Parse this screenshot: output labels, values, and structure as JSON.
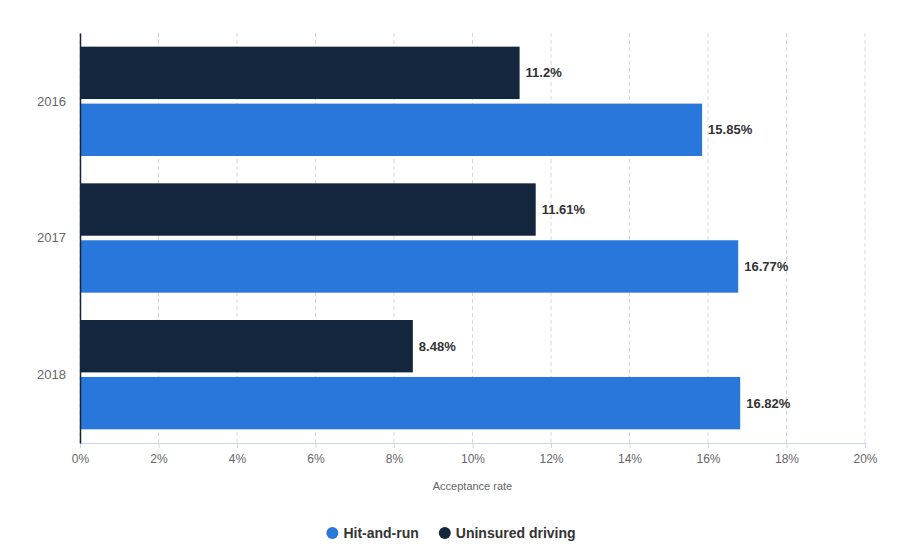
{
  "chart_data": {
    "type": "bar",
    "orientation": "horizontal",
    "categories": [
      "2016",
      "2017",
      "2018"
    ],
    "series": [
      {
        "name": "Hit-and-run",
        "color": "#2a77dc",
        "values": [
          15.85,
          16.77,
          16.82
        ],
        "value_labels": [
          "15.85%",
          "16.77%",
          "16.82%"
        ]
      },
      {
        "name": "Uninsured driving",
        "color": "#13263d",
        "values": [
          11.2,
          11.61,
          8.48
        ],
        "value_labels": [
          "11.2%",
          "11.61%",
          "8.48%"
        ]
      }
    ],
    "xlabel": "Acceptance rate",
    "xlim": [
      0,
      20
    ],
    "xticks": [
      {
        "value": 0,
        "label": "0%"
      },
      {
        "value": 2,
        "label": "2%"
      },
      {
        "value": 4,
        "label": "4%"
      },
      {
        "value": 6,
        "label": "6%"
      },
      {
        "value": 8,
        "label": "8%"
      },
      {
        "value": 10,
        "label": "10%"
      },
      {
        "value": 12,
        "label": "12%"
      },
      {
        "value": 14,
        "label": "14%"
      },
      {
        "value": 16,
        "label": "16%"
      },
      {
        "value": 18,
        "label": "18%"
      },
      {
        "value": 20,
        "label": "20%"
      }
    ],
    "grid": true,
    "data_labels": true,
    "legend": "bottom"
  }
}
